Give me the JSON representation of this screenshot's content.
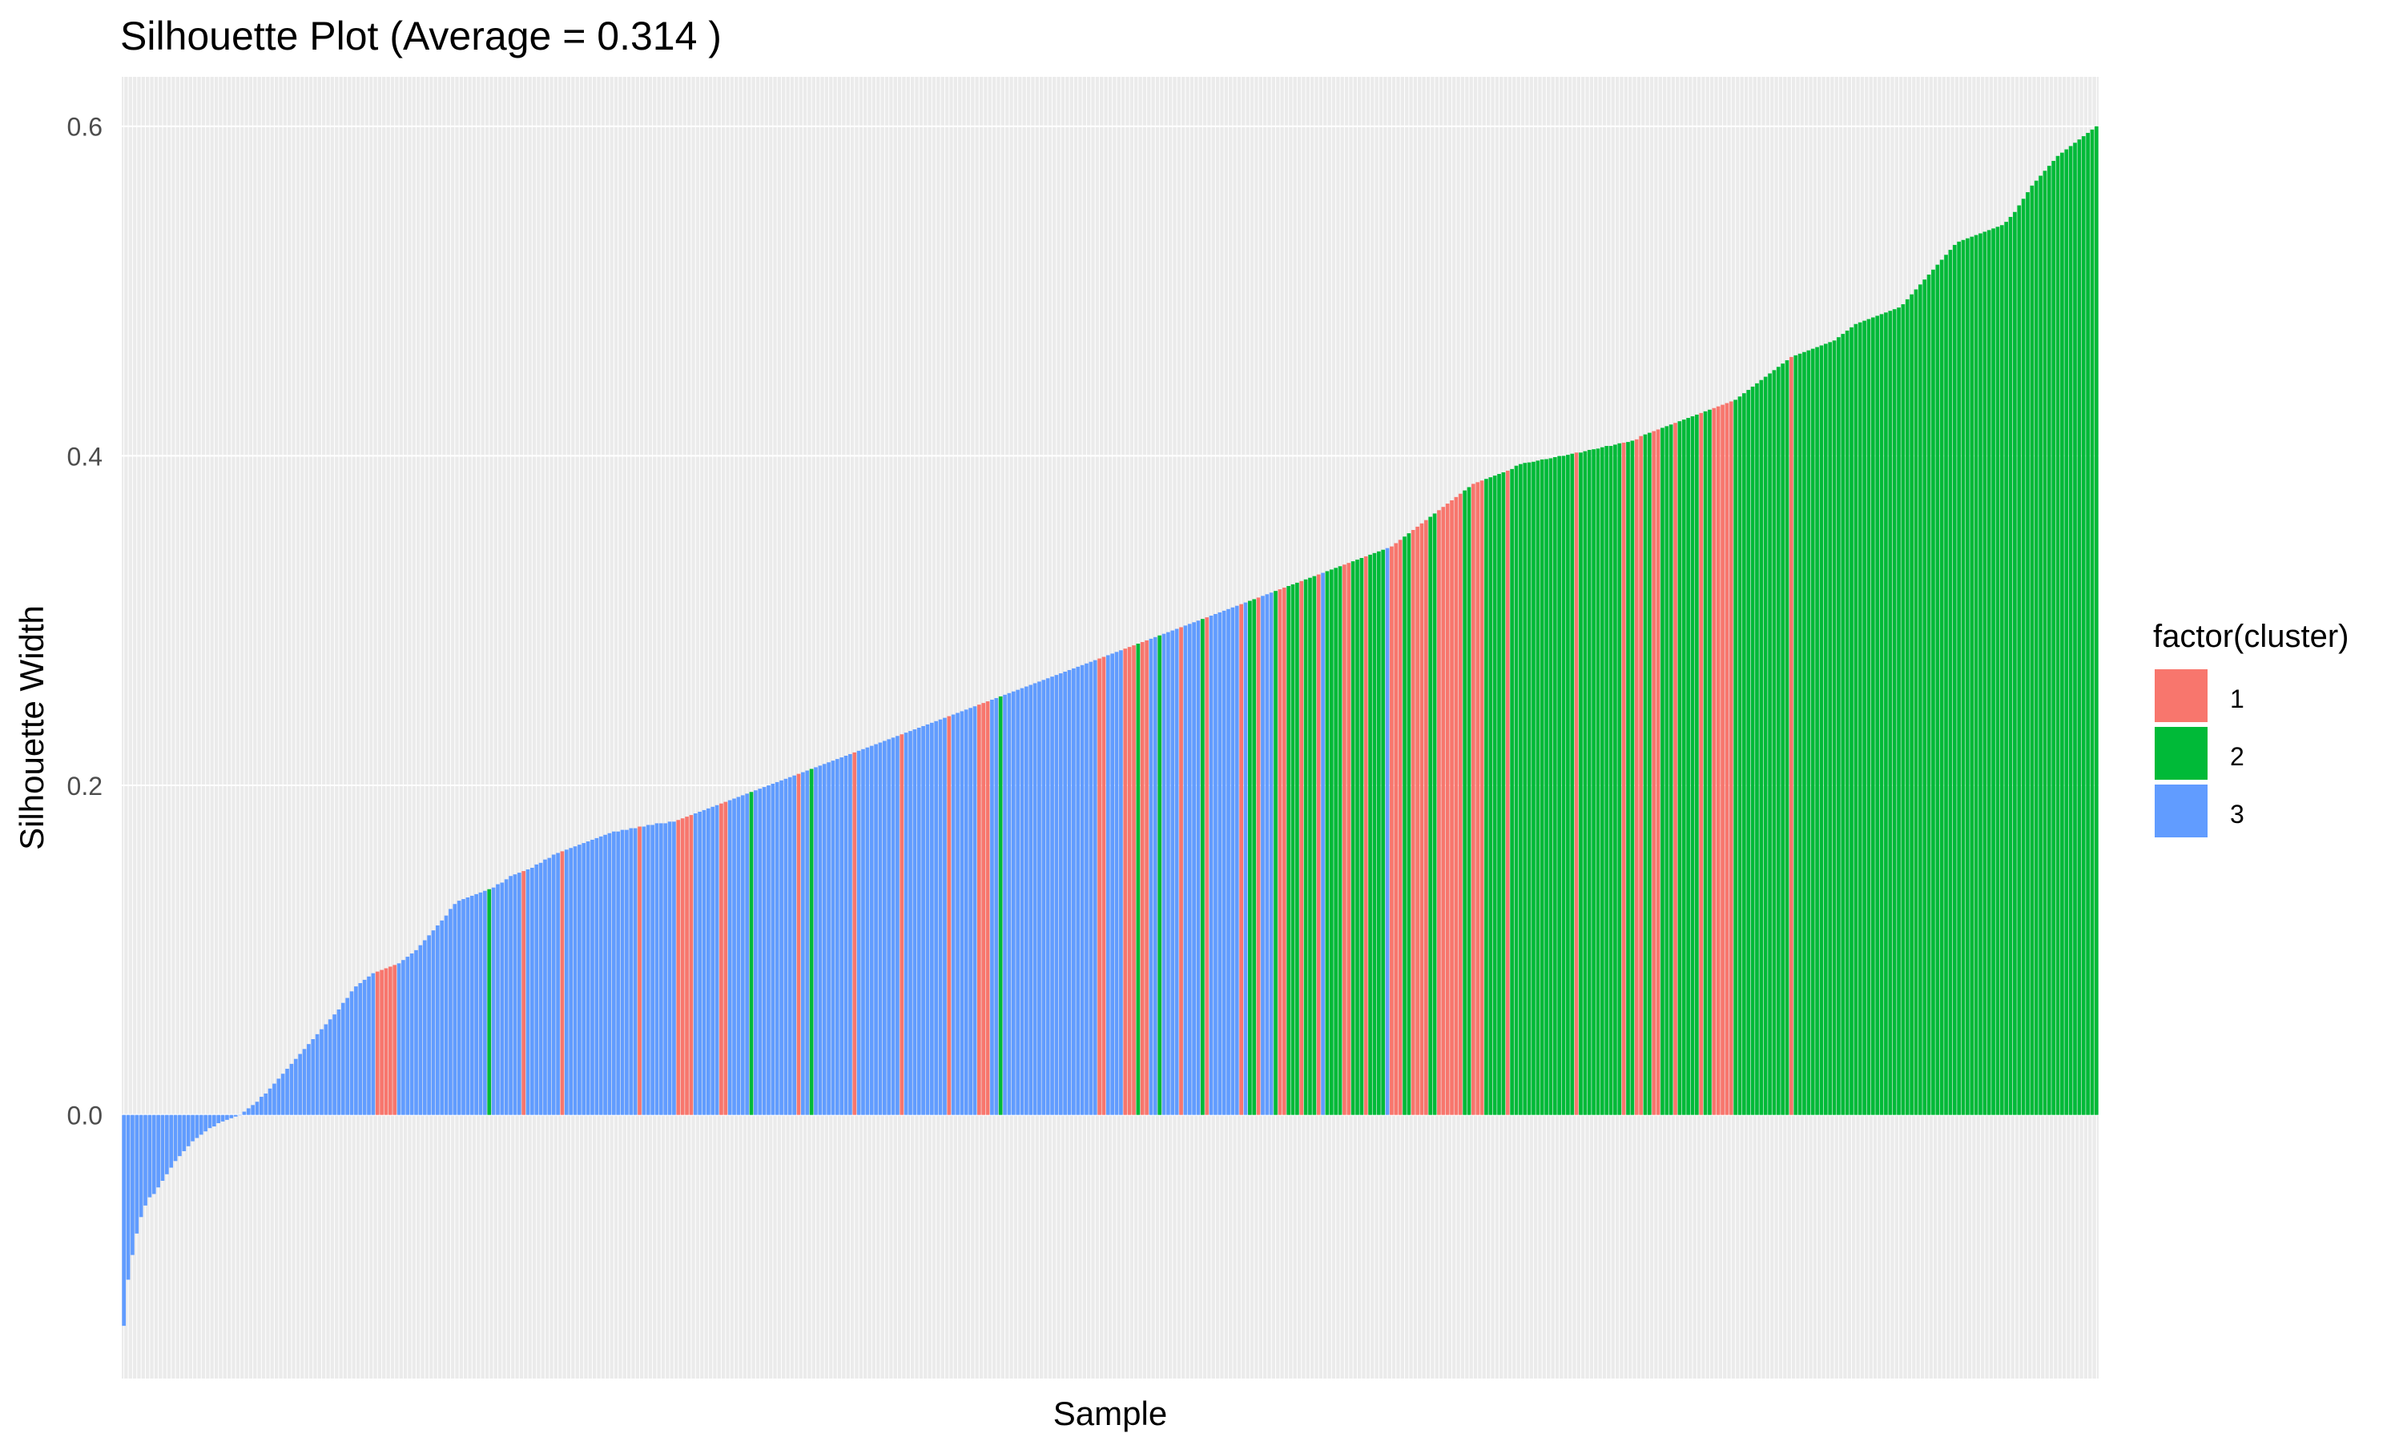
{
  "chart_data": {
    "type": "bar",
    "title": "Silhouette Plot (Average = 0.314 )",
    "xlabel": "Sample",
    "ylabel": "Silhouette Width",
    "ylim": [
      -0.16,
      0.63
    ],
    "yticks": [
      0.0,
      0.2,
      0.4,
      0.6
    ],
    "ytick_labels": [
      "0.0",
      "0.2",
      "0.4",
      "0.6"
    ],
    "grid": true,
    "sorted": "ascending",
    "n_samples": 460,
    "legend": {
      "title": "factor(cluster)",
      "position": "right",
      "entries": [
        {
          "label": "1",
          "color": "#F8766D"
        },
        {
          "label": "2",
          "color": "#00BA38"
        },
        {
          "label": "3",
          "color": "#619CFF"
        }
      ]
    },
    "curve_knots": [
      [
        0,
        -0.128
      ],
      [
        1,
        -0.1
      ],
      [
        2,
        -0.085
      ],
      [
        4,
        -0.062
      ],
      [
        7,
        -0.048
      ],
      [
        10,
        -0.036
      ],
      [
        14,
        -0.022
      ],
      [
        18,
        -0.012
      ],
      [
        22,
        -0.005
      ],
      [
        27,
        0.0
      ],
      [
        30,
        0.006
      ],
      [
        34,
        0.016
      ],
      [
        38,
        0.028
      ],
      [
        42,
        0.04
      ],
      [
        46,
        0.052
      ],
      [
        50,
        0.064
      ],
      [
        54,
        0.078
      ],
      [
        58,
        0.086
      ],
      [
        64,
        0.092
      ],
      [
        70,
        0.103
      ],
      [
        76,
        0.118
      ],
      [
        80,
        0.128
      ],
      [
        86,
        0.135
      ],
      [
        95,
        0.146
      ],
      [
        105,
        0.162
      ],
      [
        115,
        0.172
      ],
      [
        125,
        0.177
      ],
      [
        140,
        0.186
      ],
      [
        160,
        0.2
      ],
      [
        180,
        0.215
      ],
      [
        200,
        0.227
      ],
      [
        220,
        0.241
      ],
      [
        240,
        0.254
      ],
      [
        260,
        0.265
      ],
      [
        280,
        0.278
      ],
      [
        300,
        0.29
      ],
      [
        320,
        0.3
      ],
      [
        340,
        0.313
      ],
      [
        360,
        0.329
      ],
      [
        380,
        0.348
      ],
      [
        400,
        0.373
      ],
      [
        420,
        0.386
      ],
      [
        440,
        0.395
      ],
      [
        450,
        0.402
      ],
      [
        460,
        0.41
      ]
    ],
    "segments": [
      {
        "cluster": "3",
        "values": [
          -0.128,
          -0.1,
          -0.085,
          -0.072,
          -0.062,
          -0.055,
          -0.05,
          -0.048,
          -0.044,
          -0.04,
          -0.036,
          -0.032,
          -0.028,
          -0.025,
          -0.022,
          -0.019,
          -0.016,
          -0.014,
          -0.012,
          -0.01,
          -0.008,
          -0.007,
          -0.005,
          -0.004,
          -0.003,
          -0.002,
          -0.001,
          0.0,
          0.002,
          0.004,
          0.006,
          0.008,
          0.011,
          0.013,
          0.016,
          0.019,
          0.022,
          0.025,
          0.028,
          0.031,
          0.034,
          0.037,
          0.04,
          0.043,
          0.046,
          0.049,
          0.052,
          0.055,
          0.058,
          0.061,
          0.064,
          0.068,
          0.071,
          0.075,
          0.078,
          0.08,
          0.082,
          0.084,
          0.086
        ]
      },
      {
        "cluster": "1",
        "values": [
          0.087,
          0.088,
          0.089,
          0.09,
          0.091
        ]
      },
      {
        "cluster": "3",
        "values": [
          0.092,
          0.094,
          0.096,
          0.098,
          0.1,
          0.103,
          0.106,
          0.109,
          0.112,
          0.115,
          0.118,
          0.121,
          0.125,
          0.128,
          0.13,
          0.131,
          0.132,
          0.133,
          0.134,
          0.135,
          0.136
        ]
      },
      {
        "cluster": "2",
        "values": [
          0.137
        ]
      },
      {
        "cluster": "3",
        "values": [
          0.138,
          0.14,
          0.141,
          0.143,
          0.145,
          0.146,
          0.147
        ]
      },
      {
        "cluster": "1",
        "values": [
          0.148
        ]
      },
      {
        "cluster": "3",
        "values": [
          0.149,
          0.15,
          0.152,
          0.153,
          0.155,
          0.156,
          0.158,
          0.159
        ]
      },
      {
        "cluster": "1",
        "values": [
          0.16
        ]
      },
      {
        "cluster": "3",
        "values": [
          0.161,
          0.162,
          0.163,
          0.164,
          0.165,
          0.166,
          0.167,
          0.168,
          0.169,
          0.17,
          0.171,
          0.172,
          0.172,
          0.173,
          0.173,
          0.174,
          0.174
        ]
      },
      {
        "cluster": "1",
        "values": [
          0.175
        ]
      },
      {
        "cluster": "3",
        "values": [
          0.175,
          0.176,
          0.176,
          0.177,
          0.177,
          0.177,
          0.178,
          0.178
        ]
      },
      {
        "cluster": "1",
        "values": [
          0.179,
          0.18,
          0.181,
          0.182
        ]
      },
      {
        "cluster": "3",
        "values": [
          0.183,
          0.184,
          0.185,
          0.186,
          0.187,
          0.188
        ]
      },
      {
        "cluster": "1",
        "values": [
          0.189,
          0.19
        ]
      },
      {
        "cluster": "3",
        "values": [
          0.191,
          0.192,
          0.193,
          0.194,
          0.195
        ]
      },
      {
        "cluster": "2",
        "values": [
          0.196
        ]
      },
      {
        "cluster": "3",
        "values": [
          0.197,
          0.198,
          0.199,
          0.2,
          0.201,
          0.202,
          0.203,
          0.204,
          0.205,
          0.206
        ]
      },
      {
        "cluster": "1",
        "values": [
          0.207
        ]
      },
      {
        "cluster": "3",
        "values": [
          0.208,
          0.209
        ]
      },
      {
        "cluster": "2",
        "values": [
          0.21
        ]
      },
      {
        "cluster": "3",
        "values": [
          0.211,
          0.212,
          0.213,
          0.214,
          0.215,
          0.216,
          0.217,
          0.218,
          0.219
        ]
      },
      {
        "cluster": "1",
        "values": [
          0.22
        ]
      },
      {
        "cluster": "3",
        "values": [
          0.221,
          0.222,
          0.223,
          0.224,
          0.225,
          0.226,
          0.227,
          0.228,
          0.229,
          0.23
        ]
      },
      {
        "cluster": "1",
        "values": [
          0.231
        ]
      },
      {
        "cluster": "3",
        "values": [
          0.232,
          0.233,
          0.234,
          0.235,
          0.236,
          0.237,
          0.238,
          0.239,
          0.24,
          0.241
        ]
      },
      {
        "cluster": "1",
        "values": [
          0.242
        ]
      },
      {
        "cluster": "3",
        "values": [
          0.243,
          0.244,
          0.245,
          0.246,
          0.247,
          0.248
        ]
      },
      {
        "cluster": "1",
        "values": [
          0.249,
          0.25,
          0.251
        ]
      },
      {
        "cluster": "3",
        "values": [
          0.252,
          0.253
        ]
      },
      {
        "cluster": "2",
        "values": [
          0.254
        ]
      },
      {
        "cluster": "3",
        "values": [
          0.255,
          0.256,
          0.257,
          0.258,
          0.259,
          0.26,
          0.261,
          0.262,
          0.263,
          0.264,
          0.265,
          0.266,
          0.267,
          0.268,
          0.269,
          0.27,
          0.271,
          0.272,
          0.273,
          0.274,
          0.275,
          0.276
        ]
      },
      {
        "cluster": "1",
        "values": [
          0.277,
          0.278
        ]
      },
      {
        "cluster": "3",
        "values": [
          0.279,
          0.28,
          0.281,
          0.282
        ]
      },
      {
        "cluster": "1",
        "values": [
          0.283,
          0.284,
          0.285
        ]
      },
      {
        "cluster": "2",
        "values": [
          0.286
        ]
      },
      {
        "cluster": "1",
        "values": [
          0.287,
          0.288
        ]
      },
      {
        "cluster": "3",
        "values": [
          0.289,
          0.29
        ]
      },
      {
        "cluster": "2",
        "values": [
          0.291
        ]
      },
      {
        "cluster": "3",
        "values": [
          0.292,
          0.293,
          0.294,
          0.295
        ]
      },
      {
        "cluster": "1",
        "values": [
          0.296
        ]
      },
      {
        "cluster": "3",
        "values": [
          0.297,
          0.298,
          0.299,
          0.3
        ]
      },
      {
        "cluster": "2",
        "values": [
          0.301
        ]
      },
      {
        "cluster": "1",
        "values": [
          0.302
        ]
      },
      {
        "cluster": "3",
        "values": [
          0.303,
          0.304,
          0.305,
          0.306,
          0.307,
          0.308,
          0.309
        ]
      },
      {
        "cluster": "1",
        "values": [
          0.31
        ]
      },
      {
        "cluster": "3",
        "values": [
          0.311
        ]
      },
      {
        "cluster": "2",
        "values": [
          0.312,
          0.313
        ]
      },
      {
        "cluster": "1",
        "values": [
          0.314
        ]
      },
      {
        "cluster": "3",
        "values": [
          0.315,
          0.316,
          0.317
        ]
      },
      {
        "cluster": "2",
        "values": [
          0.318
        ]
      },
      {
        "cluster": "1",
        "values": [
          0.319,
          0.32
        ]
      },
      {
        "cluster": "2",
        "values": [
          0.321,
          0.322,
          0.323
        ]
      },
      {
        "cluster": "1",
        "values": [
          0.324
        ]
      },
      {
        "cluster": "2",
        "values": [
          0.325,
          0.326,
          0.327
        ]
      },
      {
        "cluster": "1",
        "values": [
          0.328
        ]
      },
      {
        "cluster": "3",
        "values": [
          0.329
        ]
      },
      {
        "cluster": "2",
        "values": [
          0.33,
          0.331,
          0.332,
          0.333
        ]
      },
      {
        "cluster": "1",
        "values": [
          0.334,
          0.335
        ]
      },
      {
        "cluster": "2",
        "values": [
          0.336,
          0.337,
          0.338
        ]
      },
      {
        "cluster": "1",
        "values": [
          0.339
        ]
      },
      {
        "cluster": "2",
        "values": [
          0.34,
          0.341,
          0.342,
          0.343
        ]
      },
      {
        "cluster": "3",
        "values": [
          0.344
        ]
      },
      {
        "cluster": "1",
        "values": [
          0.345,
          0.347,
          0.349
        ]
      },
      {
        "cluster": "2",
        "values": [
          0.351,
          0.353
        ]
      },
      {
        "cluster": "1",
        "values": [
          0.355,
          0.357,
          0.359,
          0.361
        ]
      },
      {
        "cluster": "2",
        "values": [
          0.363,
          0.365
        ]
      },
      {
        "cluster": "1",
        "values": [
          0.367,
          0.369,
          0.371,
          0.373,
          0.375,
          0.377
        ]
      },
      {
        "cluster": "2",
        "values": [
          0.379,
          0.381
        ]
      },
      {
        "cluster": "1",
        "values": [
          0.383,
          0.384,
          0.385
        ]
      },
      {
        "cluster": "2",
        "values": [
          0.386,
          0.387,
          0.388,
          0.389,
          0.39
        ]
      },
      {
        "cluster": "1",
        "values": [
          0.391
        ]
      },
      {
        "cluster": "2",
        "values": [
          0.392,
          0.394,
          0.396,
          0.398,
          0.4
        ]
      },
      {
        "cluster": "1",
        "values": [
          0.402
        ]
      },
      {
        "cluster": "2",
        "values": [
          0.404,
          0.406
        ]
      },
      {
        "cluster": "1",
        "values": [
          0.408,
          0.41,
          0.412
        ]
      },
      {
        "cluster": "2",
        "values": [
          0.413,
          0.414
        ]
      },
      {
        "cluster": "1",
        "values": [
          0.415,
          0.416
        ]
      },
      {
        "cluster": "2",
        "values": [
          0.417,
          0.418,
          0.419
        ]
      },
      {
        "cluster": "1",
        "values": [
          0.42
        ]
      },
      {
        "cluster": "2",
        "values": [
          0.421,
          0.422,
          0.423,
          0.424,
          0.425
        ]
      },
      {
        "cluster": "1",
        "values": [
          0.426
        ]
      },
      {
        "cluster": "2",
        "values": [
          0.427,
          0.428
        ]
      },
      {
        "cluster": "1",
        "values": [
          0.429,
          0.43,
          0.431,
          0.432,
          0.433
        ]
      },
      {
        "cluster": "2",
        "values": [
          0.434,
          0.436,
          0.438,
          0.44,
          0.442,
          0.444,
          0.446,
          0.448,
          0.45,
          0.452,
          0.454,
          0.456,
          0.458
        ]
      },
      {
        "cluster": "1",
        "values": [
          0.46
        ]
      },
      {
        "cluster": "2",
        "values": [
          0.461,
          0.462,
          0.463,
          0.464,
          0.465,
          0.466,
          0.467,
          0.468,
          0.469,
          0.47,
          0.472,
          0.474,
          0.476,
          0.478,
          0.48,
          0.481,
          0.482,
          0.483,
          0.484,
          0.485,
          0.486,
          0.487,
          0.488,
          0.489,
          0.49,
          0.492,
          0.495,
          0.498,
          0.501,
          0.504,
          0.507,
          0.51,
          0.513,
          0.516,
          0.519,
          0.522,
          0.525,
          0.528,
          0.53,
          0.531,
          0.532,
          0.533,
          0.534,
          0.535,
          0.536,
          0.537,
          0.538,
          0.539,
          0.54,
          0.542,
          0.545,
          0.548,
          0.552,
          0.556,
          0.56,
          0.564,
          0.567,
          0.57,
          0.573,
          0.576,
          0.579,
          0.582,
          0.584,
          0.586,
          0.588,
          0.59,
          0.592,
          0.594,
          0.596,
          0.598,
          0.6
        ]
      }
    ]
  }
}
